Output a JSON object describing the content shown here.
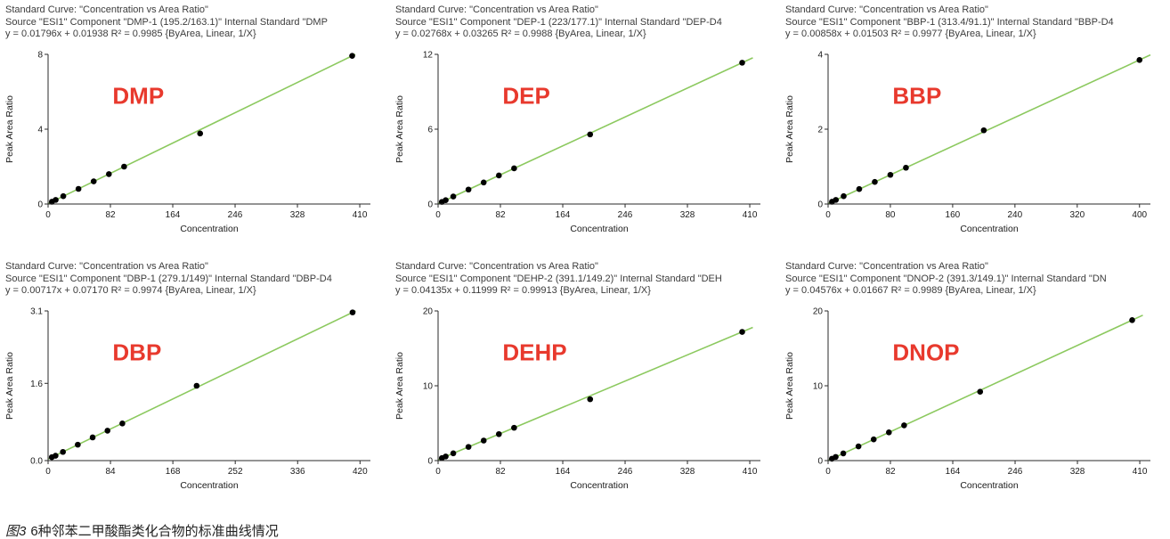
{
  "caption": {
    "figure_label": "图3",
    "text": "6种邻苯二甲酸酯类化合物的标准曲线情况"
  },
  "colors": {
    "fit_line": "#8CC95F",
    "point_fill": "#000000",
    "compound_label": "#E8392D",
    "axis": "#2a2a2a",
    "tick_text": "#1a1a1a",
    "header_text": "#3c3c3c"
  },
  "chart_data": [
    {
      "type": "scatter",
      "compound_label": "DMP",
      "title": "Standard Curve: \"Concentration vs Area Ratio\"",
      "source": "Source \"ESI1\" Component \"DMP-1 (195.2/163.1)\"  Internal Standard \"DMP",
      "equation": "y = 0.01796x + 0.01938    R² = 0.9985  {ByArea, Linear, 1/X}",
      "xlabel": "Concentration",
      "ylabel": "Peak Area Ratio",
      "xlim": [
        0,
        424
      ],
      "ylim": [
        0,
        8
      ],
      "x_ticks": [
        0,
        82,
        164,
        246,
        328,
        410
      ],
      "y_ticks": [
        0,
        4,
        8
      ],
      "y_tick_labels": [
        "0",
        "4",
        "8"
      ],
      "points": {
        "x": [
          5,
          10,
          20,
          40,
          60,
          80,
          100,
          200,
          400
        ],
        "y": [
          0.12,
          0.22,
          0.42,
          0.81,
          1.21,
          1.6,
          2.0,
          3.77,
          7.92
        ]
      }
    },
    {
      "type": "scatter",
      "compound_label": "DEP",
      "title": "Standard Curve: \"Concentration vs Area Ratio\"",
      "source": "Source \"ESI1\" Component \"DEP-1 (223/177.1)\"  Internal Standard \"DEP-D4",
      "equation": "y = 0.02768x + 0.03265    R² = 0.9988  {ByArea, Linear, 1/X}",
      "xlabel": "Concentration",
      "ylabel": "Peak Area Ratio",
      "xlim": [
        0,
        424
      ],
      "ylim": [
        0,
        12
      ],
      "x_ticks": [
        0,
        82,
        164,
        246,
        328,
        410
      ],
      "y_ticks": [
        0,
        6,
        12
      ],
      "y_tick_labels": [
        "0",
        "6",
        "12"
      ],
      "points": {
        "x": [
          5,
          10,
          20,
          40,
          60,
          80,
          100,
          200,
          400
        ],
        "y": [
          0.17,
          0.31,
          0.6,
          1.16,
          1.73,
          2.29,
          2.86,
          5.58,
          11.33
        ]
      }
    },
    {
      "type": "scatter",
      "compound_label": "BBP",
      "title": "Standard Curve: \"Concentration vs Area Ratio\"",
      "source": "Source \"ESI1\" Component \"BBP-1 (313.4/91.1)\"  Internal Standard \"BBP-D4",
      "equation": "y = 0.00858x + 0.01503    R² = 0.9977  {ByArea, Linear, 1/X}",
      "xlabel": "Concentration",
      "ylabel": "Peak Area Ratio",
      "xlim": [
        0,
        414
      ],
      "ylim": [
        0,
        4
      ],
      "x_ticks": [
        0,
        80,
        160,
        240,
        320,
        400
      ],
      "y_ticks": [
        0,
        2,
        4
      ],
      "y_tick_labels": [
        "0",
        "2",
        "4"
      ],
      "points": {
        "x": [
          5,
          10,
          20,
          40,
          60,
          80,
          100,
          200,
          400
        ],
        "y": [
          0.06,
          0.11,
          0.21,
          0.4,
          0.59,
          0.78,
          0.97,
          1.97,
          3.85
        ]
      }
    },
    {
      "type": "scatter",
      "compound_label": "DBP",
      "title": "Standard Curve: \"Concentration vs Area Ratio\"",
      "source": "Source \"ESI1\" Component \"DBP-1 (279.1/149)\"  Internal Standard \"DBP-D4",
      "equation": "y = 0.00717x + 0.07170    R² = 0.9974  {ByArea, Linear, 1/X}",
      "xlabel": "Concentration",
      "ylabel": "Peak Area Ratio",
      "xlim": [
        0,
        434
      ],
      "ylim": [
        0,
        3.1
      ],
      "x_ticks": [
        0,
        84,
        168,
        252,
        336,
        420
      ],
      "y_ticks": [
        0,
        1.6,
        3.1
      ],
      "y_tick_labels": [
        "0.0",
        "1.6",
        "3.1"
      ],
      "points": {
        "x": [
          5,
          10,
          20,
          40,
          60,
          80,
          100,
          200,
          410
        ],
        "y": [
          0.07,
          0.1,
          0.18,
          0.33,
          0.48,
          0.62,
          0.77,
          1.55,
          3.07
        ]
      }
    },
    {
      "type": "scatter",
      "compound_label": "DEHP",
      "title": "Standard Curve: \"Concentration vs Area Ratio\"",
      "source": "Source \"ESI1\" Component \"DEHP-2 (391.1/149.2)\"  Internal Standard \"DEH",
      "equation": "y = 0.04135x + 0.11999    R² = 0.99913  {ByArea, Linear, 1/X}",
      "xlabel": "Concentration",
      "ylabel": "Peak Area Ratio",
      "xlim": [
        0,
        424
      ],
      "ylim": [
        0,
        20
      ],
      "x_ticks": [
        0,
        82,
        164,
        246,
        328,
        410
      ],
      "y_ticks": [
        0,
        10,
        20
      ],
      "y_tick_labels": [
        "0",
        "10",
        "20"
      ],
      "points": {
        "x": [
          5,
          10,
          20,
          40,
          60,
          80,
          100,
          200,
          400
        ],
        "y": [
          0.33,
          0.55,
          0.97,
          1.83,
          2.68,
          3.54,
          4.39,
          8.2,
          17.2
        ]
      }
    },
    {
      "type": "scatter",
      "compound_label": "DNOP",
      "title": "Standard Curve: \"Concentration vs Area Ratio\"",
      "source": "Source \"ESI1\" Component \"DNOP-2 (391.3/149.1)\"  Internal Standard \"DN",
      "equation": "y = 0.04576x + 0.01667    R² = 0.9989  {ByArea, Linear, 1/X}",
      "xlabel": "Concentration",
      "ylabel": "Peak Area Ratio",
      "xlim": [
        0,
        424
      ],
      "ylim": [
        0,
        20
      ],
      "x_ticks": [
        0,
        82,
        164,
        246,
        328,
        410
      ],
      "y_ticks": [
        0,
        10,
        20
      ],
      "y_tick_labels": [
        "0",
        "10",
        "20"
      ],
      "points": {
        "x": [
          5,
          10,
          20,
          40,
          60,
          80,
          100,
          200,
          400
        ],
        "y": [
          0.25,
          0.49,
          0.96,
          1.9,
          2.83,
          3.77,
          4.71,
          9.2,
          18.77
        ]
      }
    }
  ]
}
